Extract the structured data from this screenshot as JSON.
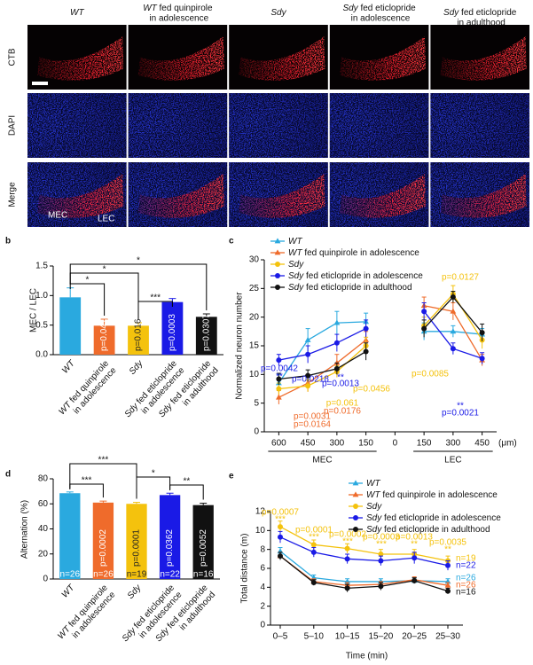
{
  "panel_a": {
    "columns": [
      "WT",
      "WT fed quinpirole in adolescence",
      "Sdy",
      "Sdy fed eticlopride in adolescence",
      "Sdy fed eticlopride in adulthood"
    ],
    "rows": [
      "CTB",
      "DAPI",
      "Merge"
    ],
    "region_labels": [
      "MEC",
      "LEC"
    ]
  },
  "chart_data": [
    {
      "type": "bar",
      "panel": "b",
      "ylabel": "MEC / LEC",
      "categories": [
        "WT",
        "WT fed quinpirole in adolescence",
        "Sdy",
        "Sdy fed eticlopride in adolescence",
        "Sdy fed eticlopride in adulthood"
      ],
      "values": [
        0.97,
        0.49,
        0.49,
        0.89,
        0.64
      ],
      "errors": [
        0.16,
        0.11,
        0.05,
        0.06,
        0.05
      ],
      "colors": [
        "#2aa9df",
        "#ef6b2b",
        "#f4c20d",
        "#1a1ae6",
        "#111111"
      ],
      "p_values": [
        null,
        "p=0.041",
        "p=0.016",
        "p=0.0003",
        "p=0.0307"
      ],
      "comparisons": [
        {
          "from": 0,
          "to": 1,
          "label": "*"
        },
        {
          "from": 0,
          "to": 2,
          "label": "*"
        },
        {
          "from": 0,
          "to": 4,
          "label": "*"
        },
        {
          "from": 2,
          "to": 3,
          "label": "***"
        }
      ],
      "ylim": [
        0,
        1.5
      ],
      "yticks": [
        {
          "value": 0,
          "label": "0.0"
        },
        0.5,
        {
          "value": 1,
          "label": "1.0"
        },
        1.5
      ]
    },
    {
      "type": "line",
      "panel": "c",
      "ylabel": "Normalized neuron number",
      "categories": [
        "600",
        "450",
        "300",
        "150",
        "0",
        "150",
        "300",
        "450"
      ],
      "x_unit": "(μm)",
      "groups": [
        "MEC",
        "LEC"
      ],
      "ylim": [
        0,
        30
      ],
      "yticks": [
        0,
        5,
        10,
        15,
        20,
        25,
        30
      ],
      "series": [
        {
          "name": "WT",
          "color": "#2aa9df",
          "marker": "triangle",
          "values": [
            8.5,
            16,
            19,
            19.2,
            null,
            17.5,
            17.5,
            17
          ],
          "errors": [
            1.5,
            2,
            2,
            1.5,
            null,
            1.5,
            1,
            1
          ]
        },
        {
          "name": "WT fed quinpirole in adolescence",
          "color": "#ef6b2b",
          "marker": "triangle",
          "values": [
            6,
            8.5,
            12,
            16,
            null,
            22,
            21,
            12.5
          ],
          "errors": [
            1.2,
            1.5,
            1.5,
            1.5,
            null,
            1.5,
            1.5,
            1
          ]
        },
        {
          "name": "Sdy",
          "color": "#f4c20d",
          "marker": "circle",
          "values": [
            7.5,
            8,
            10.5,
            15,
            null,
            18.5,
            24,
            16
          ],
          "errors": [
            1,
            1,
            1,
            1.5,
            null,
            1.5,
            1.5,
            1.5
          ]
        },
        {
          "name": "Sdy fed eticlopride in adolescence",
          "color": "#1a1ae6",
          "marker": "circle",
          "values": [
            12.5,
            13.5,
            15.5,
            18,
            null,
            21,
            14.5,
            12.8
          ],
          "errors": [
            1,
            1.5,
            1.5,
            1.5,
            null,
            1.5,
            1,
            1
          ]
        },
        {
          "name": "Sdy fed eticlopride in adulthood",
          "color": "#111111",
          "marker": "circle",
          "values": [
            9.2,
            9.8,
            11,
            14,
            null,
            18,
            23.5,
            17.3
          ],
          "errors": [
            1,
            1,
            1,
            1.5,
            null,
            1.5,
            1,
            1.5
          ]
        }
      ],
      "annotations": [
        {
          "text": "p=0.0042",
          "color": "#1a1ae6"
        },
        {
          "text": "**",
          "color": "#1a1ae6"
        },
        {
          "text": "p=0.0218",
          "color": "#1a1ae6"
        },
        {
          "text": "p=0.0013",
          "color": "#1a1ae6"
        },
        {
          "text": "**",
          "color": "#1a1ae6"
        },
        {
          "text": "p=0.0021",
          "color": "#1a1ae6"
        },
        {
          "text": "**",
          "color": "#1a1ae6"
        },
        {
          "text": "p=0.0031",
          "color": "#ef6b2b"
        },
        {
          "text": "p=0.0164",
          "color": "#ef6b2b"
        },
        {
          "text": "p=0.0176",
          "color": "#ef6b2b"
        },
        {
          "text": "p=0.061",
          "color": "#f4c20d"
        },
        {
          "text": "p=0.0456",
          "color": "#f4c20d"
        },
        {
          "text": "p=0.0085",
          "color": "#f4c20d"
        },
        {
          "text": "p=0.0127",
          "color": "#f4c20d"
        }
      ]
    },
    {
      "type": "bar",
      "panel": "d",
      "ylabel": "Alternation (%)",
      "categories": [
        "WT",
        "WT fed quinpirole in adolescence",
        "Sdy",
        "Sdy fed eticlopride in adolescence",
        "Sdy fed eticlopride in adulthood"
      ],
      "values": [
        68.5,
        61,
        60,
        67,
        59
      ],
      "errors": [
        1,
        1.2,
        1.2,
        1.5,
        1.5
      ],
      "colors": [
        "#2aa9df",
        "#ef6b2b",
        "#f4c20d",
        "#1a1ae6",
        "#111111"
      ],
      "p_values": [
        null,
        "p=0.0002",
        "p=0.0001",
        "p=0.0362",
        "p=0.0052"
      ],
      "n_labels": [
        "n=26",
        "n=26",
        "n=19",
        "n=22",
        "n=16"
      ],
      "comparisons": [
        {
          "from": 0,
          "to": 1,
          "label": "***"
        },
        {
          "from": 0,
          "to": 2,
          "label": "***"
        },
        {
          "from": 2,
          "to": 3,
          "label": "*"
        },
        {
          "from": 3,
          "to": 4,
          "label": "**"
        }
      ],
      "ylim": [
        0,
        80
      ],
      "yticks": [
        0,
        20,
        40,
        60,
        80
      ]
    },
    {
      "type": "line",
      "panel": "e",
      "ylabel": "Total distance (m)",
      "xlabel": "Time (min)",
      "categories": [
        "0–5",
        "5–10",
        "10–15",
        "15–20",
        "20–25",
        "25–30"
      ],
      "ylim": [
        0,
        12
      ],
      "yticks": [
        0,
        2,
        4,
        6,
        8,
        10,
        12
      ],
      "series": [
        {
          "name": "WT",
          "color": "#2aa9df",
          "marker": "triangle",
          "n": "n=26",
          "values": [
            7.8,
            5.0,
            4.6,
            4.6,
            4.7,
            4.6
          ],
          "errors": [
            0.4,
            0.3,
            0.3,
            0.3,
            0.3,
            0.3
          ]
        },
        {
          "name": "WT fed quinpirole in adolescence",
          "color": "#ef6b2b",
          "marker": "triangle",
          "n": "n=26",
          "values": [
            7.3,
            4.6,
            4.2,
            4.3,
            4.8,
            4.2
          ],
          "errors": [
            0.4,
            0.3,
            0.3,
            0.3,
            0.3,
            0.3
          ]
        },
        {
          "name": "Sdy",
          "color": "#f4c20d",
          "marker": "circle",
          "n": "n=19",
          "values": [
            10.4,
            8.5,
            8.1,
            7.5,
            7.5,
            6.8
          ],
          "errors": [
            0.6,
            0.5,
            0.5,
            0.5,
            0.5,
            0.5
          ]
        },
        {
          "name": "Sdy fed eticlopride in adolescence",
          "color": "#1a1ae6",
          "marker": "circle",
          "n": "n=22",
          "values": [
            9.3,
            7.7,
            7.0,
            6.8,
            7.1,
            6.3
          ],
          "errors": [
            0.6,
            0.5,
            0.5,
            0.5,
            0.6,
            0.5
          ]
        },
        {
          "name": "Sdy fed eticlopride in adulthood",
          "color": "#111111",
          "marker": "circle",
          "n": "n=16",
          "values": [
            7.3,
            4.5,
            3.9,
            4.1,
            4.7,
            3.6
          ],
          "errors": [
            0.4,
            0.3,
            0.4,
            0.4,
            0.3,
            0.3
          ]
        }
      ],
      "annotations": [
        {
          "text": "p=0.0007",
          "color": "#f4c20d"
        },
        {
          "text": "***",
          "color": "#f4c20d"
        },
        {
          "text": "p=0.0001",
          "color": "#f4c20d"
        },
        {
          "text": "***",
          "color": "#f4c20d"
        },
        {
          "text": "p=0.0002",
          "color": "#f4c20d"
        },
        {
          "text": "***",
          "color": "#f4c20d"
        },
        {
          "text": "p=0.0003",
          "color": "#f4c20d"
        },
        {
          "text": "***",
          "color": "#f4c20d"
        },
        {
          "text": "p=0.0013",
          "color": "#f4c20d"
        },
        {
          "text": "**",
          "color": "#f4c20d"
        },
        {
          "text": "p=0.0035",
          "color": "#f4c20d"
        },
        {
          "text": "**",
          "color": "#f4c20d"
        }
      ]
    }
  ]
}
